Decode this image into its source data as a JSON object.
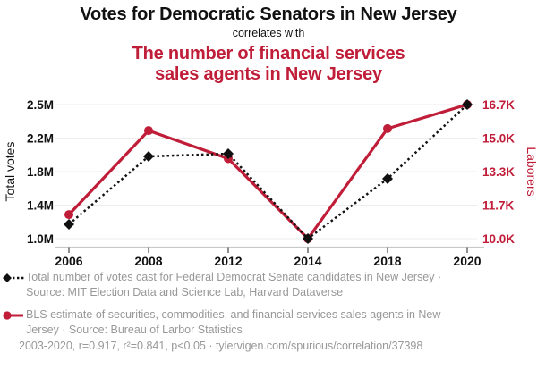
{
  "header": {
    "title": "Votes for Democratic Senators in New Jersey",
    "connector": "correlates with",
    "subtitle": "The number of financial services sales agents in New Jersey",
    "subtitle_lines": [
      "The number of financial services",
      "sales agents in New Jersey"
    ]
  },
  "colors": {
    "accent_red": "#c01d39",
    "series_black": "#111111",
    "legend_gray": "#989898",
    "gridline": "#ececec",
    "axis_line": "#c9c9c9",
    "tick_mark": "#444444"
  },
  "chart_data": {
    "type": "line",
    "x": [
      2006,
      2008,
      2012,
      2014,
      2018,
      2020
    ],
    "x_tick_labels": [
      "2006",
      "2008",
      "2012",
      "2014",
      "2018",
      "2020"
    ],
    "series": [
      {
        "name": "Total number of votes cast for Federal Democrat Senate candidates in New Jersey",
        "axis": "left",
        "unit": "millions of votes",
        "style": "dotted",
        "marker": "diamond",
        "color": "#111111",
        "values": [
          1.2,
          1.96,
          1.99,
          1.04,
          1.71,
          2.54
        ]
      },
      {
        "name": "BLS estimate of securities, commodities, and financial services sales agents in New Jersey",
        "axis": "right",
        "unit": "thousands of laborers",
        "style": "solid",
        "marker": "circle",
        "color": "#c01d39",
        "values": [
          11.2,
          15.4,
          14.0,
          10.0,
          15.5,
          16.7
        ]
      }
    ],
    "y_left": {
      "label": "Total votes",
      "tick_labels": [
        "2.5M",
        "2.2M",
        "1.8M",
        "1.4M",
        "1.0M"
      ],
      "range": [
        1.04,
        2.54
      ]
    },
    "y_right": {
      "label": "Laborers",
      "tick_labels": [
        "16.7K",
        "15.0K",
        "13.3K",
        "11.7K",
        "10.0K"
      ],
      "range": [
        10.0,
        16.7
      ]
    },
    "grid": true,
    "legend_position": "bottom"
  },
  "legend": {
    "items": [
      {
        "marker": "black-diamond-dotted-line",
        "text": "Total number of votes cast for Federal Democrat Senate candidates in New Jersey · Source: MIT Election Data and Science Lab, Harvard Dataverse"
      },
      {
        "marker": "red-circle-solid-line",
        "text": "BLS estimate of securities, commodities, and financial services sales agents in New Jersey · Source: Bureau of Larbor Statistics"
      }
    ]
  },
  "footer": {
    "stats": "2003-2020, r=0.917, r²=0.841, p<0.05 · tylervigen.com/spurious/correlation/37398"
  }
}
